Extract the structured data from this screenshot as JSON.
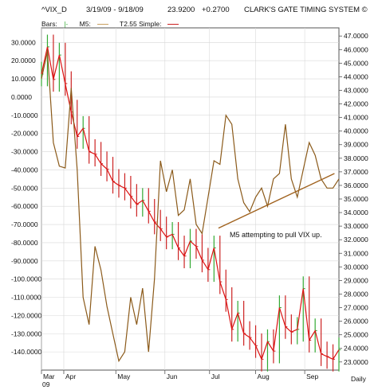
{
  "header": {
    "symbol": "^VIX_D",
    "date_range": "3/19/09 - 9/18/09",
    "last": "23.9200",
    "change": "+0.2700",
    "system": "CLARK'S GATE TIMING SYSTEM ©"
  },
  "legend": {
    "bars_label": "Bars:",
    "bars_marker": "|-",
    "m5_label": "M5:",
    "t_label": "T2.55 Simple:",
    "m5_color": "#c9a060",
    "t_color": "#cc2222"
  },
  "footer": {
    "year": "09",
    "period_label": "Daily"
  },
  "annotation": "M5 attempting to pull VIX up.",
  "colors": {
    "bar_up": "#33aa33",
    "bar_down": "#cc2222",
    "red_line": "#dd1111",
    "brown_line": "#8b5a1a",
    "trendline": "#a0621e",
    "grid": "#d8d8d8",
    "axis": "#555555"
  },
  "chart_data": {
    "type": "line",
    "left_axis": {
      "ticks": [
        "30.0000",
        "20.0000",
        "10.0000",
        "0.0000",
        "-10.0000",
        "-20.0000",
        "-30.0000",
        "-40.0000",
        "-50.0000",
        "-60.0000",
        "-70.0000",
        "-80.0000",
        "-90.0000",
        "-100.0000",
        "-110.0000",
        "-120.0000",
        "-130.0000",
        "-140.0000"
      ],
      "range": [
        -150,
        38
      ]
    },
    "right_axis": {
      "ticks": [
        "47.0000",
        "46.0000",
        "45.0000",
        "44.0000",
        "43.0000",
        "42.0000",
        "41.0000",
        "40.0000",
        "39.0000",
        "38.0000",
        "37.0000",
        "36.0000",
        "35.0000",
        "34.0000",
        "33.0000",
        "32.0000",
        "31.0000",
        "30.0000",
        "29.0000",
        "28.0000",
        "27.0000",
        "26.0000",
        "25.0000",
        "24.0000",
        "23.0000"
      ],
      "range": [
        22.4,
        47.6
      ]
    },
    "x_axis": {
      "months": [
        "Mar",
        "Apr",
        "May",
        "Jun",
        "Jul",
        "Aug",
        "Sep"
      ],
      "month_pos": [
        0,
        0.075,
        0.25,
        0.415,
        0.565,
        0.72,
        0.885
      ]
    },
    "series": [
      {
        "axis": "right",
        "x": [
          0,
          0.02,
          0.04,
          0.06,
          0.08,
          0.1,
          0.12,
          0.14,
          0.16,
          0.18,
          0.2,
          0.22,
          0.24,
          0.26,
          0.28,
          0.3,
          0.32,
          0.34,
          0.36,
          0.38,
          0.4,
          0.42,
          0.44,
          0.46,
          0.48,
          0.5,
          0.52,
          0.54,
          0.56,
          0.58,
          0.6,
          0.62,
          0.64,
          0.66,
          0.68,
          0.7,
          0.72,
          0.74,
          0.76,
          0.78,
          0.8,
          0.82,
          0.84,
          0.86,
          0.88,
          0.9,
          0.92,
          0.94,
          0.96,
          0.98,
          1.0
        ],
        "values": [
          44.2,
          46.2,
          43.8,
          45.6,
          43.5,
          41.4,
          39.6,
          40.2,
          38.5,
          38.3,
          37.6,
          37.2,
          36.3,
          36.0,
          35.8,
          35.2,
          34.6,
          34.9,
          34.1,
          33.3,
          32.8,
          32.2,
          32.4,
          31.4,
          30.8,
          31.9,
          31.5,
          30.5,
          29.8,
          31.4,
          28.9,
          27.6,
          25.4,
          26.6,
          25.1,
          24.8,
          24.2,
          23.2,
          24.5,
          23.8,
          27.0,
          25.6,
          25.2,
          25.4,
          28.4,
          24.6,
          25.3,
          23.6,
          23.4,
          23.2,
          23.9
        ]
      },
      {
        "axis": "left",
        "x": [
          0,
          0.02,
          0.04,
          0.06,
          0.08,
          0.1,
          0.12,
          0.14,
          0.16,
          0.18,
          0.2,
          0.22,
          0.24,
          0.26,
          0.28,
          0.3,
          0.32,
          0.34,
          0.36,
          0.38,
          0.4,
          0.42,
          0.44,
          0.46,
          0.48,
          0.5,
          0.52,
          0.54,
          0.56,
          0.58,
          0.6,
          0.62,
          0.64,
          0.66,
          0.68,
          0.7,
          0.72,
          0.74,
          0.76,
          0.78,
          0.8,
          0.82,
          0.84,
          0.86,
          0.88,
          0.9,
          0.92,
          0.94,
          0.96,
          0.98,
          1.0
        ],
        "values": [
          10,
          25,
          -25,
          -38,
          -39,
          5,
          -40,
          -110,
          -125,
          -82,
          -95,
          -115,
          -130,
          -145,
          -140,
          -110,
          -125,
          -105,
          -140,
          -100,
          -35,
          -52,
          -40,
          -65,
          -62,
          -45,
          -70,
          -75,
          -55,
          -35,
          -37,
          -10,
          -15,
          -45,
          -58,
          -63,
          -55,
          -50,
          -60,
          -45,
          -42,
          -15,
          -45,
          -55,
          -40,
          -25,
          -32,
          -45,
          -50,
          -50,
          -45
        ]
      }
    ],
    "trendline": {
      "axis": "left",
      "x": [
        0.595,
        0.985
      ],
      "values": [
        -72,
        -42
      ]
    }
  }
}
